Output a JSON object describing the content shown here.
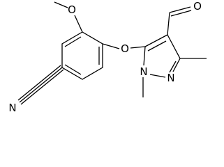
{
  "atoms": {
    "methoxy_o": "O",
    "ether_o": "O",
    "aldehyde_o": "O",
    "nitrile_n": "N",
    "pyrazole_n1": "N",
    "pyrazole_n2": "N"
  }
}
